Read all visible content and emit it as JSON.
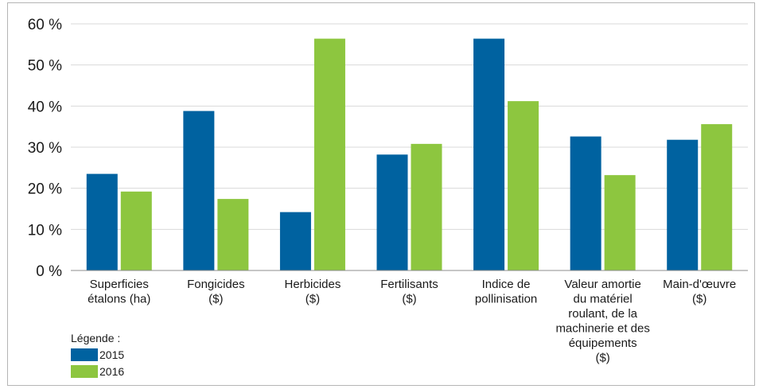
{
  "chart_data": {
    "type": "bar",
    "categories": [
      [
        "Superficies",
        "étalons (ha)"
      ],
      [
        "Fongicides",
        "($)"
      ],
      [
        "Herbicides",
        "($)"
      ],
      [
        "Fertilisants",
        "($)"
      ],
      [
        "Indice de",
        "pollinisation"
      ],
      [
        "Valeur amortie",
        "du matériel",
        "roulant, de la",
        "machinerie et des",
        "équipements",
        "($)"
      ],
      [
        "Main-d'œuvre",
        "($)"
      ]
    ],
    "series": [
      {
        "name": "2015",
        "color": "#0062a0",
        "values": [
          23.5,
          38.8,
          14.2,
          28.2,
          56.4,
          32.6,
          31.8
        ]
      },
      {
        "name": "2016",
        "color": "#8dc63f",
        "values": [
          19.2,
          17.4,
          56.4,
          30.8,
          41.2,
          23.2,
          35.6
        ]
      }
    ],
    "yticks": [
      "0 %",
      "10 %",
      "20 %",
      "30 %",
      "40 %",
      "50 %",
      "60 %"
    ],
    "ylim": [
      0,
      60
    ],
    "grid": true,
    "gridline_color": "#d9d9d9",
    "legend_position": "bottom-left"
  },
  "legend": {
    "title": "Légende :",
    "items": [
      {
        "label": "2015",
        "color": "#0062a0"
      },
      {
        "label": "2016",
        "color": "#8dc63f"
      }
    ]
  }
}
